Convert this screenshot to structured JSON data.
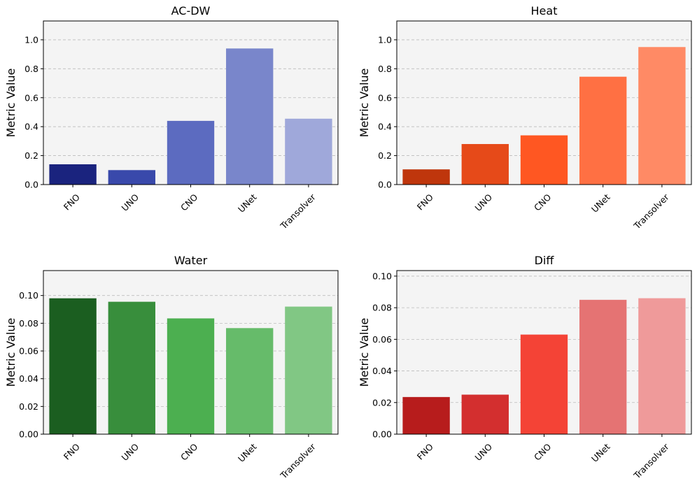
{
  "chart_data": [
    {
      "type": "bar",
      "title": "AC-DW",
      "ylabel": "Metric Value",
      "xlabel": "",
      "categories": [
        "FNO",
        "UNO",
        "CNO",
        "UNet",
        "Transolver"
      ],
      "values": [
        0.14,
        0.1,
        0.44,
        0.94,
        0.455
      ],
      "colors": [
        "#1a237e",
        "#3949ab",
        "#5c6bc0",
        "#7986cb",
        "#9fa8da"
      ],
      "ylim": [
        0,
        1.13
      ],
      "yticks": [
        0.0,
        0.2,
        0.4,
        0.6,
        0.8,
        1.0
      ],
      "ytick_labels": [
        "0.0",
        "0.2",
        "0.4",
        "0.6",
        "0.8",
        "1.0"
      ],
      "grid": true
    },
    {
      "type": "bar",
      "title": "Heat",
      "ylabel": "Metric Value",
      "xlabel": "",
      "categories": [
        "FNO",
        "UNO",
        "CNO",
        "UNet",
        "Transolver"
      ],
      "values": [
        0.105,
        0.28,
        0.34,
        0.745,
        0.95
      ],
      "colors": [
        "#bf360c",
        "#e64a19",
        "#ff5722",
        "#ff7043",
        "#ff8a65"
      ],
      "ylim": [
        0,
        1.13
      ],
      "yticks": [
        0.0,
        0.2,
        0.4,
        0.6,
        0.8,
        1.0
      ],
      "ytick_labels": [
        "0.0",
        "0.2",
        "0.4",
        "0.6",
        "0.8",
        "1.0"
      ],
      "grid": true
    },
    {
      "type": "bar",
      "title": "Water",
      "ylabel": "Metric Value",
      "xlabel": "",
      "categories": [
        "FNO",
        "UNO",
        "CNO",
        "UNet",
        "Transolver"
      ],
      "values": [
        0.098,
        0.0955,
        0.0835,
        0.0765,
        0.092
      ],
      "colors": [
        "#1b5e20",
        "#388e3c",
        "#4caf50",
        "#66bb6a",
        "#81c784"
      ],
      "ylim": [
        0,
        0.118
      ],
      "yticks": [
        0.0,
        0.02,
        0.04,
        0.06,
        0.08,
        0.1
      ],
      "ytick_labels": [
        "0.00",
        "0.02",
        "0.04",
        "0.06",
        "0.08",
        "0.10"
      ],
      "grid": true
    },
    {
      "type": "bar",
      "title": "Diff",
      "ylabel": "Metric Value",
      "xlabel": "",
      "categories": [
        "FNO",
        "UNO",
        "CNO",
        "UNet",
        "Transolver"
      ],
      "values": [
        0.0235,
        0.025,
        0.063,
        0.085,
        0.086
      ],
      "colors": [
        "#b71c1c",
        "#d32f2f",
        "#f44336",
        "#e57373",
        "#ef9a9a"
      ],
      "ylim": [
        0,
        0.1035
      ],
      "yticks": [
        0.0,
        0.02,
        0.04,
        0.06,
        0.08,
        0.1
      ],
      "ytick_labels": [
        "0.00",
        "0.02",
        "0.04",
        "0.06",
        "0.08",
        "0.10"
      ],
      "grid": true
    }
  ]
}
